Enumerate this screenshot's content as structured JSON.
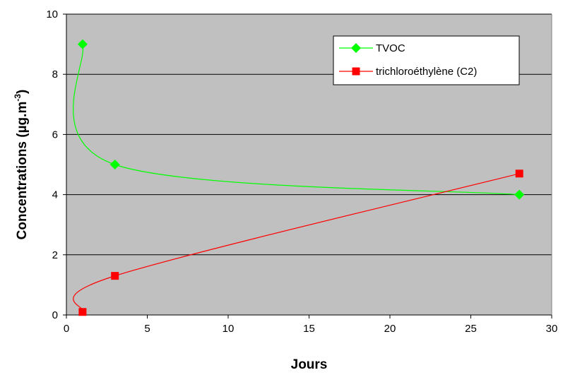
{
  "chart_data": {
    "type": "line",
    "title": "",
    "xlabel": "Jours",
    "ylabel": "Concentrations (µg.m",
    "ylabel_superscript": "-3",
    "ylabel_suffix": ")",
    "xlim": [
      0,
      30
    ],
    "ylim": [
      0,
      10
    ],
    "xticks": [
      "0",
      "5",
      "10",
      "15",
      "20",
      "25",
      "30"
    ],
    "yticks": [
      "0",
      "2",
      "4",
      "6",
      "8",
      "10"
    ],
    "grid": "horizontal",
    "legend_position": "top-right",
    "plot_background": "#c0c0c0",
    "series": [
      {
        "name": "TVOC",
        "color": "#00ff00",
        "marker": "diamond",
        "x": [
          1,
          3,
          28
        ],
        "y": [
          9.0,
          5.0,
          4.0
        ]
      },
      {
        "name": "trichloroéthylène (C2)",
        "color": "#ff0000",
        "marker": "square",
        "x": [
          1,
          3,
          28
        ],
        "y": [
          0.1,
          1.3,
          4.7
        ]
      }
    ]
  }
}
